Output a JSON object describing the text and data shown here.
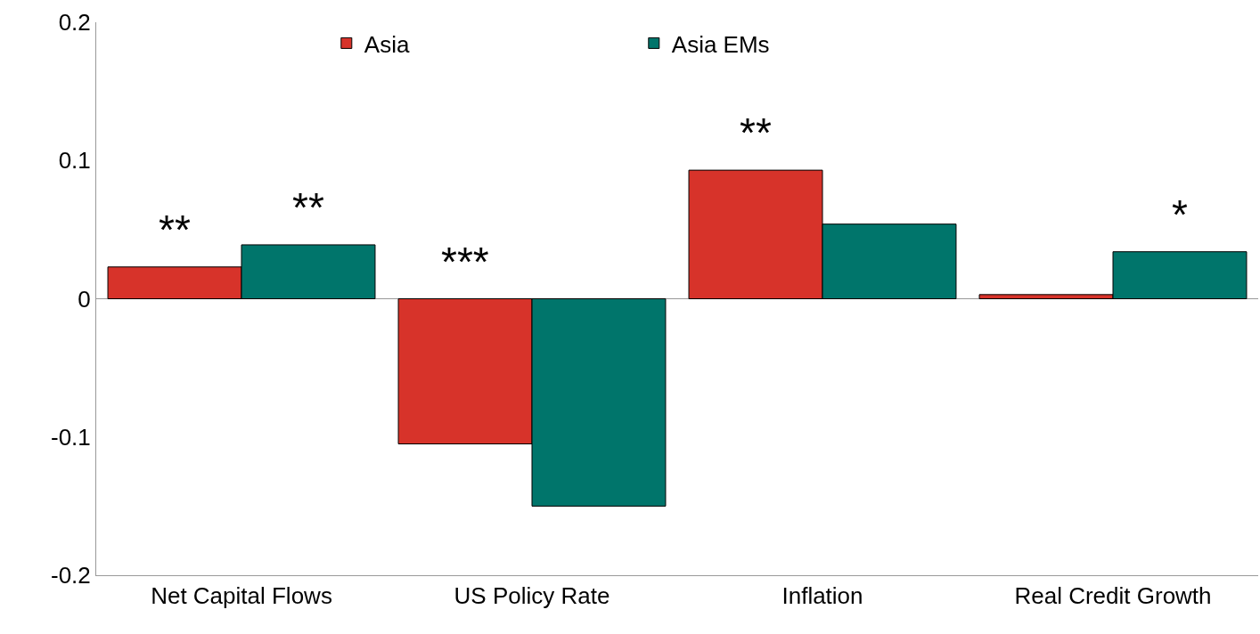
{
  "chart_data": {
    "type": "bar",
    "categories": [
      "Net Capital Flows",
      "US Policy Rate",
      "Inflation",
      "Real Credit Growth"
    ],
    "series": [
      {
        "name": "Asia",
        "color": "#d7332a",
        "values": [
          0.023,
          -0.105,
          0.093,
          0.003
        ],
        "value_labels": [
          "**",
          "***",
          "**",
          null
        ]
      },
      {
        "name": "Asia EMs",
        "color": "#00756b",
        "values": [
          0.039,
          -0.15,
          0.054,
          0.034
        ],
        "value_labels": [
          "**",
          null,
          null,
          "*"
        ]
      }
    ],
    "ylim": [
      -0.2,
      0.2
    ],
    "yticks": [
      -0.2,
      -0.1,
      0,
      0.1,
      0.2
    ],
    "legend": "top"
  }
}
